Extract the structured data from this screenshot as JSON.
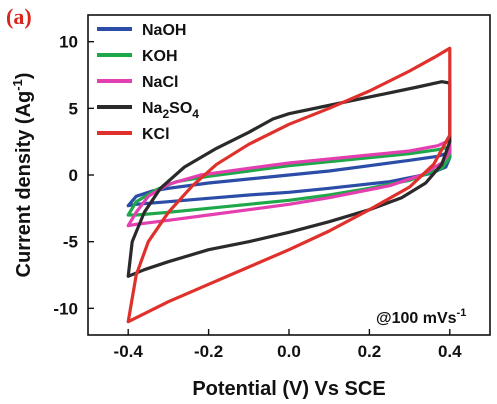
{
  "chart_data": {
    "type": "line",
    "panel_label": "(a)",
    "panel_label_color": "#d9261c",
    "xlabel": "Potential (V) Vs SCE",
    "ylabel": {
      "main": "Current density (Ag",
      "sup": "-1",
      "close": ")"
    },
    "xlim": [
      -0.5,
      0.5
    ],
    "ylim": [
      -12,
      12
    ],
    "xticks": [
      -0.4,
      -0.2,
      0.0,
      0.2,
      0.4
    ],
    "xtick_labels": [
      "-0.4",
      "-0.2",
      "0.0",
      "0.2",
      "0.4"
    ],
    "yticks": [
      -10,
      -5,
      0,
      5,
      10
    ],
    "ytick_labels": [
      "-10",
      "-5",
      "0",
      "5",
      "10"
    ],
    "annotation": {
      "main": "@100 mVs",
      "sup": "-1"
    },
    "legend_position": "top-left",
    "series": [
      {
        "name": "NaOH",
        "legend": {
          "parts": [
            [
              "NaOH",
              false
            ]
          ]
        },
        "color": "#2b4da8",
        "points": [
          [
            -0.4,
            -2.3
          ],
          [
            -0.38,
            -1.6
          ],
          [
            -0.34,
            -1.2
          ],
          [
            -0.3,
            -1.0
          ],
          [
            -0.2,
            -0.6
          ],
          [
            -0.1,
            -0.3
          ],
          [
            0.0,
            0.0
          ],
          [
            0.1,
            0.3
          ],
          [
            0.2,
            0.7
          ],
          [
            0.3,
            1.1
          ],
          [
            0.37,
            1.4
          ],
          [
            0.4,
            1.7
          ],
          [
            0.4,
            1.3
          ],
          [
            0.39,
            0.6
          ],
          [
            0.35,
            0.1
          ],
          [
            0.25,
            -0.5
          ],
          [
            0.1,
            -1.0
          ],
          [
            0.0,
            -1.3
          ],
          [
            -0.1,
            -1.5
          ],
          [
            -0.2,
            -1.75
          ],
          [
            -0.3,
            -2.0
          ],
          [
            -0.38,
            -2.2
          ],
          [
            -0.4,
            -2.3
          ]
        ]
      },
      {
        "name": "KOH",
        "legend": {
          "parts": [
            [
              "KOH",
              false
            ]
          ]
        },
        "color": "#1ea84a",
        "points": [
          [
            -0.4,
            -3.0
          ],
          [
            -0.38,
            -2.0
          ],
          [
            -0.33,
            -1.1
          ],
          [
            -0.28,
            -0.5
          ],
          [
            -0.2,
            -0.1
          ],
          [
            -0.1,
            0.3
          ],
          [
            0.0,
            0.7
          ],
          [
            0.1,
            1.0
          ],
          [
            0.2,
            1.3
          ],
          [
            0.3,
            1.6
          ],
          [
            0.37,
            1.9
          ],
          [
            0.4,
            2.1
          ],
          [
            0.4,
            1.3
          ],
          [
            0.38,
            0.5
          ],
          [
            0.3,
            -0.4
          ],
          [
            0.2,
            -1.0
          ],
          [
            0.1,
            -1.5
          ],
          [
            0.0,
            -1.9
          ],
          [
            -0.1,
            -2.2
          ],
          [
            -0.2,
            -2.5
          ],
          [
            -0.3,
            -2.8
          ],
          [
            -0.38,
            -3.0
          ],
          [
            -0.4,
            -3.0
          ]
        ]
      },
      {
        "name": "NaCl",
        "legend": {
          "parts": [
            [
              "NaCl",
              false
            ]
          ]
        },
        "color": "#e43fb0",
        "points": [
          [
            -0.4,
            -3.8
          ],
          [
            -0.38,
            -2.8
          ],
          [
            -0.35,
            -1.6
          ],
          [
            -0.3,
            -0.7
          ],
          [
            -0.22,
            0.0
          ],
          [
            -0.1,
            0.5
          ],
          [
            0.0,
            0.9
          ],
          [
            0.1,
            1.2
          ],
          [
            0.2,
            1.5
          ],
          [
            0.3,
            1.8
          ],
          [
            0.37,
            2.2
          ],
          [
            0.4,
            2.6
          ],
          [
            0.4,
            1.7
          ],
          [
            0.38,
            0.9
          ],
          [
            0.33,
            0.0
          ],
          [
            0.25,
            -0.8
          ],
          [
            0.1,
            -1.7
          ],
          [
            0.0,
            -2.2
          ],
          [
            -0.1,
            -2.6
          ],
          [
            -0.2,
            -3.0
          ],
          [
            -0.3,
            -3.4
          ],
          [
            -0.38,
            -3.7
          ],
          [
            -0.4,
            -3.8
          ]
        ]
      },
      {
        "name": "Na2SO4",
        "legend": {
          "parts": [
            [
              "Na",
              false
            ],
            [
              "2",
              true
            ],
            [
              "SO",
              false
            ],
            [
              "4",
              true
            ]
          ]
        },
        "color": "#2a2a2a",
        "points": [
          [
            -0.4,
            -7.6
          ],
          [
            -0.39,
            -5.0
          ],
          [
            -0.36,
            -2.8
          ],
          [
            -0.32,
            -1.0
          ],
          [
            -0.26,
            0.6
          ],
          [
            -0.18,
            2.0
          ],
          [
            -0.1,
            3.2
          ],
          [
            -0.04,
            4.2
          ],
          [
            0.0,
            4.6
          ],
          [
            0.08,
            5.1
          ],
          [
            0.16,
            5.6
          ],
          [
            0.24,
            6.1
          ],
          [
            0.32,
            6.6
          ],
          [
            0.38,
            7.0
          ],
          [
            0.4,
            6.9
          ],
          [
            0.4,
            2.5
          ],
          [
            0.38,
            0.8
          ],
          [
            0.34,
            -0.6
          ],
          [
            0.28,
            -1.7
          ],
          [
            0.2,
            -2.6
          ],
          [
            0.1,
            -3.5
          ],
          [
            0.0,
            -4.3
          ],
          [
            -0.1,
            -5.0
          ],
          [
            -0.2,
            -5.6
          ],
          [
            -0.3,
            -6.5
          ],
          [
            -0.36,
            -7.1
          ],
          [
            -0.4,
            -7.6
          ]
        ]
      },
      {
        "name": "KCl",
        "legend": {
          "parts": [
            [
              "KCl",
              false
            ]
          ]
        },
        "color": "#e0302b",
        "points": [
          [
            -0.4,
            -11.0
          ],
          [
            -0.38,
            -7.5
          ],
          [
            -0.35,
            -5.0
          ],
          [
            -0.3,
            -2.8
          ],
          [
            -0.24,
            -0.8
          ],
          [
            -0.18,
            0.8
          ],
          [
            -0.1,
            2.3
          ],
          [
            0.0,
            3.8
          ],
          [
            0.1,
            5.0
          ],
          [
            0.2,
            6.3
          ],
          [
            0.3,
            7.8
          ],
          [
            0.36,
            8.8
          ],
          [
            0.4,
            9.5
          ],
          [
            0.4,
            3.0
          ],
          [
            0.36,
            0.8
          ],
          [
            0.3,
            -0.9
          ],
          [
            0.2,
            -2.6
          ],
          [
            0.1,
            -4.2
          ],
          [
            0.0,
            -5.6
          ],
          [
            -0.1,
            -6.9
          ],
          [
            -0.2,
            -8.2
          ],
          [
            -0.3,
            -9.5
          ],
          [
            -0.36,
            -10.4
          ],
          [
            -0.4,
            -11.0
          ]
        ]
      }
    ]
  }
}
